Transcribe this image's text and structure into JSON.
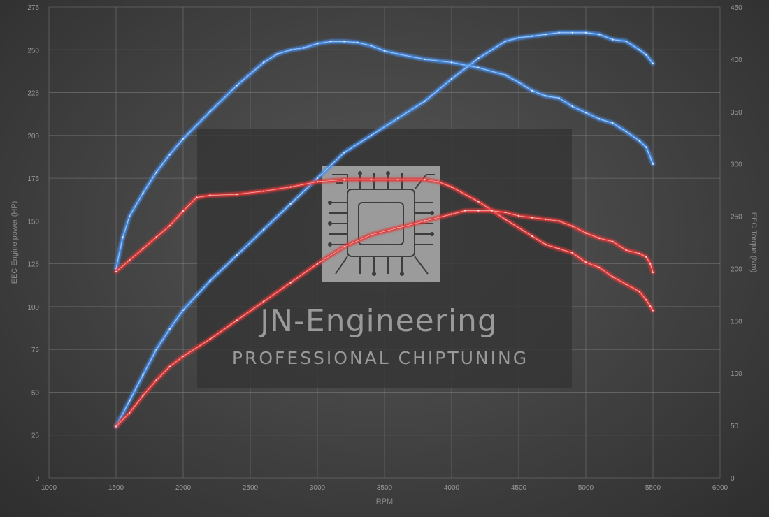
{
  "watermark": {
    "title": "JN-Engineering",
    "subtitle": "PROFESSIONAL CHIPTUNING"
  },
  "colors": {
    "tuned": "#4a8fe8",
    "stock": "#e23a3a",
    "grid": "#8a8a8a",
    "text": "#9a9a9a"
  },
  "chart_data": {
    "type": "line",
    "xlabel": "RPM",
    "ylabel_left": "EEC Engine power (HP)",
    "ylabel_right": "EEC Torque (Nm)",
    "xlim": [
      1000,
      6000
    ],
    "ylim_left": [
      0,
      275
    ],
    "ylim_right": [
      0,
      450
    ],
    "x_ticks": [
      1000,
      1500,
      2000,
      2500,
      3000,
      3500,
      4000,
      4500,
      5000,
      5500,
      6000
    ],
    "y_ticks_left": [
      0,
      25,
      50,
      75,
      100,
      125,
      150,
      175,
      200,
      225,
      250,
      275
    ],
    "y_ticks_right": [
      0,
      50,
      100,
      150,
      200,
      250,
      300,
      350,
      400,
      450
    ],
    "grid": true,
    "series": [
      {
        "axis": "right",
        "color_key": "tuned",
        "x": [
          1500,
          1550,
          1600,
          1700,
          1800,
          1900,
          2000,
          2200,
          2400,
          2600,
          2700,
          2800,
          2900,
          3000,
          3100,
          3200,
          3300,
          3400,
          3500,
          3600,
          3800,
          4000,
          4200,
          4400,
          4500,
          4600,
          4700,
          4800,
          4900,
          5000,
          5100,
          5200,
          5300,
          5400,
          5450,
          5500
        ],
        "y": [
          200,
          230,
          250,
          272,
          292,
          309,
          324,
          350,
          375,
          397,
          405,
          409,
          411,
          415,
          417,
          417,
          416,
          413,
          408,
          405,
          400,
          397,
          392,
          385,
          378,
          370,
          365,
          363,
          355,
          349,
          343,
          339,
          331,
          322,
          316,
          300
        ]
      },
      {
        "axis": "left",
        "color_key": "tuned",
        "x": [
          1500,
          1600,
          1700,
          1800,
          1900,
          2000,
          2200,
          2400,
          2600,
          2800,
          3000,
          3200,
          3400,
          3600,
          3800,
          4000,
          4200,
          4400,
          4500,
          4600,
          4700,
          4800,
          4900,
          5000,
          5100,
          5200,
          5300,
          5400,
          5450,
          5500
        ],
        "y": [
          30,
          45,
          60,
          75,
          87,
          98,
          115,
          130,
          145,
          160,
          175,
          190,
          200,
          210,
          220,
          233,
          245,
          255,
          257,
          258,
          259,
          260,
          260,
          260,
          259,
          256,
          255,
          250,
          247,
          242
        ]
      },
      {
        "axis": "right",
        "color_key": "stock",
        "x": [
          1500,
          1600,
          1700,
          1800,
          1900,
          2000,
          2100,
          2200,
          2400,
          2600,
          2800,
          3000,
          3200,
          3400,
          3600,
          3800,
          3900,
          4000,
          4200,
          4400,
          4600,
          4700,
          4800,
          4900,
          5000,
          5100,
          5200,
          5300,
          5400,
          5450,
          5480,
          5500
        ],
        "y": [
          197,
          208,
          219,
          230,
          241,
          255,
          268,
          270,
          271,
          274,
          278,
          283,
          285,
          285,
          285,
          285,
          283,
          278,
          264,
          247,
          231,
          223,
          219,
          215,
          206,
          201,
          192,
          185,
          178,
          170,
          164,
          160
        ]
      },
      {
        "axis": "left",
        "color_key": "stock",
        "x": [
          1500,
          1600,
          1700,
          1800,
          1900,
          2000,
          2200,
          2400,
          2600,
          2800,
          3000,
          3200,
          3400,
          3600,
          3800,
          4000,
          4100,
          4200,
          4300,
          4400,
          4500,
          4600,
          4700,
          4800,
          4900,
          5000,
          5100,
          5200,
          5300,
          5400,
          5450,
          5480,
          5500
        ],
        "y": [
          30,
          38,
          48,
          57,
          65,
          71,
          81,
          92,
          103,
          114,
          125,
          135,
          142,
          146,
          150,
          154,
          156,
          156,
          156,
          155,
          153,
          152,
          151,
          150,
          147,
          143,
          140,
          138,
          133,
          131,
          129,
          125,
          120
        ]
      }
    ]
  }
}
